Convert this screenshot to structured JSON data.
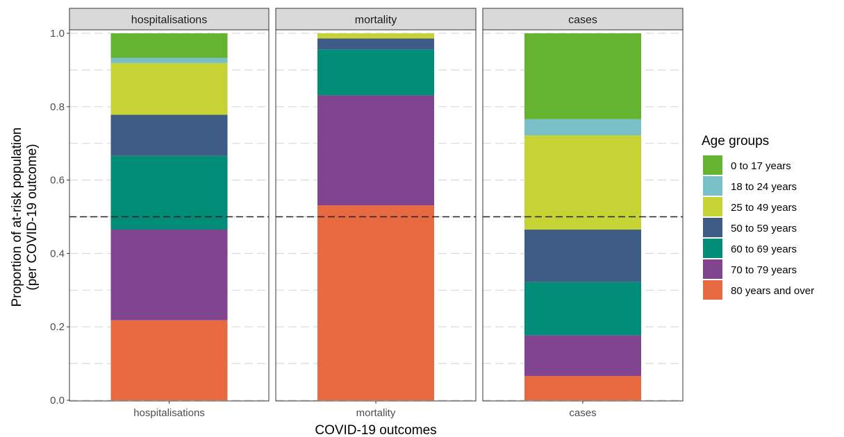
{
  "chart_data": {
    "type": "bar",
    "stacked": true,
    "facets": [
      "hospitalisations",
      "mortality",
      "cases"
    ],
    "categories": [
      "hospitalisations",
      "mortality",
      "cases"
    ],
    "xlabel": "COVID-19 outcomes",
    "ylabel_lines": [
      "Proportion of at-risk population",
      "(per COVID-19 outcome)"
    ],
    "ylim": [
      0,
      1
    ],
    "yticks": [
      "0.0",
      "0.2",
      "0.4",
      "0.6",
      "0.8",
      "1.0"
    ],
    "reference_line": {
      "y": 0.5,
      "style": "dashed"
    },
    "grid": "horizontal dashed",
    "legend": {
      "title": "Age groups",
      "placement": "right"
    },
    "series": [
      {
        "name": "80 years and over",
        "color": "#E86A40",
        "values": [
          0.218,
          0.531,
          0.066
        ]
      },
      {
        "name": "70 to 79 years",
        "color": "#81448E",
        "values": [
          0.247,
          0.3,
          0.111
        ]
      },
      {
        "name": "60 to 69 years",
        "color": "#018C77",
        "values": [
          0.201,
          0.125,
          0.145
        ]
      },
      {
        "name": "50 to 59 years",
        "color": "#3E5C86",
        "values": [
          0.112,
          0.03,
          0.143
        ]
      },
      {
        "name": "25 to 49 years",
        "color": "#C6D334",
        "values": [
          0.141,
          0.014,
          0.257
        ]
      },
      {
        "name": "18 to 24 years",
        "color": "#79BFC8",
        "values": [
          0.014,
          0.0,
          0.044
        ]
      },
      {
        "name": "0 to 17 years",
        "color": "#64B331",
        "values": [
          0.067,
          0.0,
          0.234
        ]
      }
    ],
    "legend_order": [
      "0 to 17 years",
      "18 to 24 years",
      "25 to 49 years",
      "50 to 59 years",
      "60 to 69 years",
      "70 to 79 years",
      "80 years and over"
    ]
  }
}
